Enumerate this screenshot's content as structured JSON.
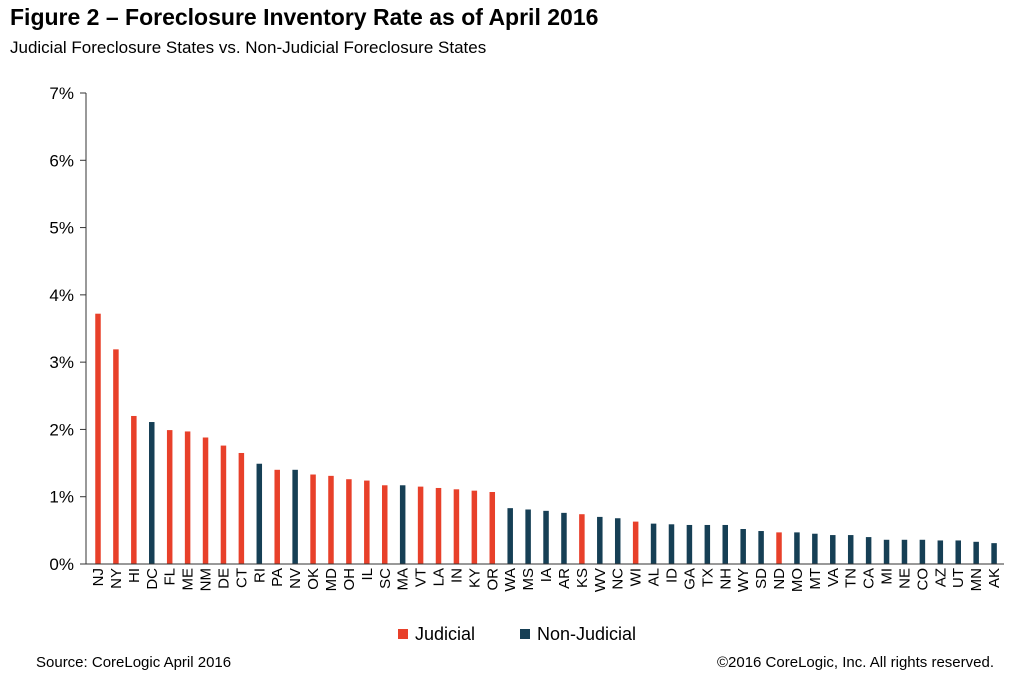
{
  "title": "Figure 2 – Foreclosure Inventory Rate as of April 2016",
  "subtitle": "Judicial Foreclosure States vs. Non-Judicial Foreclosure States",
  "source": "Source: CoreLogic  April 2016",
  "copyright": "©2016 CoreLogic, Inc.  All rights reserved.",
  "colors": {
    "judicial": "#e8402a",
    "non_judicial": "#163f55"
  },
  "chart_data": {
    "type": "bar",
    "categories": [
      "NJ",
      "NY",
      "HI",
      "DC",
      "FL",
      "ME",
      "NM",
      "DE",
      "CT",
      "RI",
      "PA",
      "NV",
      "OK",
      "MD",
      "OH",
      "IL",
      "SC",
      "MA",
      "VT",
      "LA",
      "IN",
      "KY",
      "OR",
      "WA",
      "MS",
      "IA",
      "AR",
      "KS",
      "WV",
      "NC",
      "WI",
      "AL",
      "ID",
      "GA",
      "TX",
      "NH",
      "WY",
      "SD",
      "ND",
      "MO",
      "MT",
      "VA",
      "TN",
      "CA",
      "MI",
      "NE",
      "CO",
      "AZ",
      "UT",
      "MN",
      "AK"
    ],
    "values": [
      3.72,
      3.19,
      2.2,
      2.11,
      1.99,
      1.97,
      1.88,
      1.76,
      1.65,
      1.49,
      1.4,
      1.4,
      1.33,
      1.31,
      1.26,
      1.24,
      1.17,
      1.17,
      1.15,
      1.13,
      1.11,
      1.09,
      1.07,
      0.83,
      0.81,
      0.79,
      0.76,
      0.74,
      0.7,
      0.68,
      0.63,
      0.6,
      0.59,
      0.58,
      0.58,
      0.58,
      0.52,
      0.49,
      0.47,
      0.47,
      0.45,
      0.43,
      0.43,
      0.4,
      0.36,
      0.36,
      0.36,
      0.35,
      0.35,
      0.33,
      0.31
    ],
    "types": [
      "J",
      "J",
      "J",
      "N",
      "J",
      "J",
      "J",
      "J",
      "J",
      "N",
      "J",
      "N",
      "J",
      "J",
      "J",
      "J",
      "J",
      "N",
      "J",
      "J",
      "J",
      "J",
      "J",
      "N",
      "N",
      "N",
      "N",
      "J",
      "N",
      "N",
      "J",
      "N",
      "N",
      "N",
      "N",
      "N",
      "N",
      "N",
      "J",
      "N",
      "N",
      "N",
      "N",
      "N",
      "N",
      "N",
      "N",
      "N",
      "N",
      "N",
      "N"
    ],
    "legend": [
      {
        "key": "J",
        "label": "Judicial"
      },
      {
        "key": "N",
        "label": "Non-Judicial"
      }
    ],
    "yticks": [
      "0%",
      "1%",
      "2%",
      "3%",
      "4%",
      "5%",
      "6%",
      "7%"
    ],
    "ylim": [
      0,
      7
    ],
    "xlabel": "",
    "ylabel": "",
    "grid": false,
    "legend_position": "bottom"
  }
}
